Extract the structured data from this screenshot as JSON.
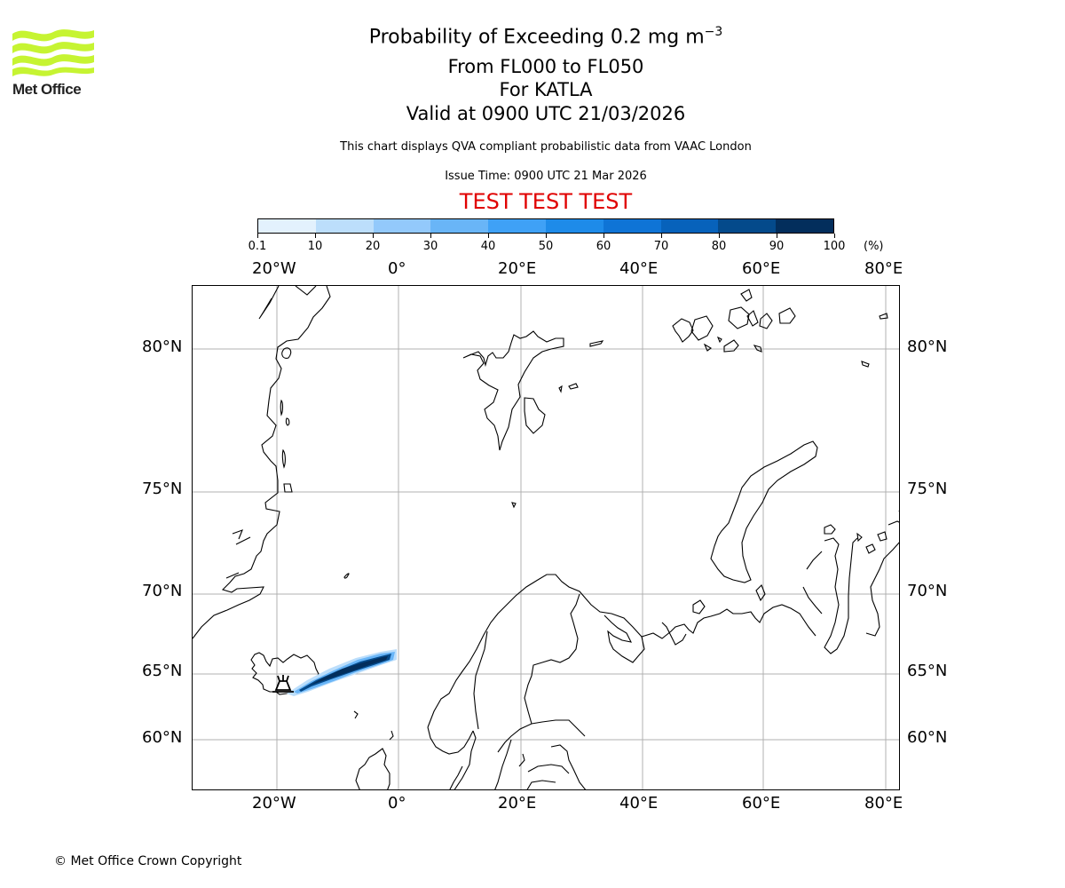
{
  "logo": {
    "text": "Met Office",
    "icon": "met-office-wave-logo",
    "color": "#c6f432"
  },
  "header": {
    "title": "Probability of Exceeding 0.2 mg m",
    "title_superscript": "−3",
    "line2": "From FL000 to FL050",
    "line3": "For KATLA",
    "line4": "Valid at 0900 UTC 21/03/2026",
    "description": "This chart displays QVA compliant probabilistic data from VAAC London",
    "issue_time": "Issue Time: 0900 UTC 21 Mar 2026",
    "test_banner": "TEST TEST TEST",
    "test_color": "#e00000"
  },
  "colorbar": {
    "unit": "(%)",
    "tick_labels": [
      "0.1",
      "10",
      "20",
      "30",
      "40",
      "50",
      "60",
      "70",
      "80",
      "90",
      "100"
    ],
    "colors": [
      "#e3f1fd",
      "#bcdefb",
      "#93c9fb",
      "#69b5f7",
      "#3fa1f6",
      "#1e8be9",
      "#0f74d6",
      "#0762bb",
      "#044a8b",
      "#032e5c"
    ]
  },
  "axes": {
    "lon_labels": [
      "20°W",
      "0°",
      "20°E",
      "40°E",
      "60°E",
      "80°E"
    ],
    "lat_labels": [
      "80°N",
      "75°N",
      "70°N",
      "65°N",
      "60°N"
    ]
  },
  "footer": {
    "copyright": "© Met Office Crown Copyright"
  },
  "chart_data": {
    "type": "heatmap",
    "title": "Probability of Exceeding 0.2 mg m−3",
    "subtitle": [
      "From FL000 to FL050",
      "For KATLA",
      "Valid at 0900 UTC 21/03/2026"
    ],
    "volcano": "KATLA",
    "threshold": "0.2 mg m−3",
    "flight_levels": [
      "FL000",
      "FL050"
    ],
    "valid_time": "0900 UTC 21/03/2026",
    "issue_time": "0900 UTC 21 Mar 2026",
    "colorbar": {
      "label": "(%)",
      "bounds": [
        0.1,
        10,
        20,
        30,
        40,
        50,
        60,
        70,
        80,
        90,
        100
      ]
    },
    "x_ticks": [
      "20°W",
      "0°",
      "20°E",
      "40°E",
      "60°E",
      "80°E"
    ],
    "y_ticks": [
      "80°N",
      "75°N",
      "70°N",
      "65°N",
      "60°N"
    ],
    "extent": {
      "lon": [
        -34,
        83
      ],
      "lat": [
        57,
        83
      ]
    },
    "grid": true,
    "plume": {
      "description": "Narrow ash plume extending ENE from Katla (southern Iceland) to about 0°, 66°N",
      "start": {
        "lon": -19,
        "lat": 63.6
      },
      "end": {
        "lon": 0,
        "lat": 66.3
      },
      "core_probability": "90-100",
      "edge_probability": "0.1-30"
    }
  }
}
